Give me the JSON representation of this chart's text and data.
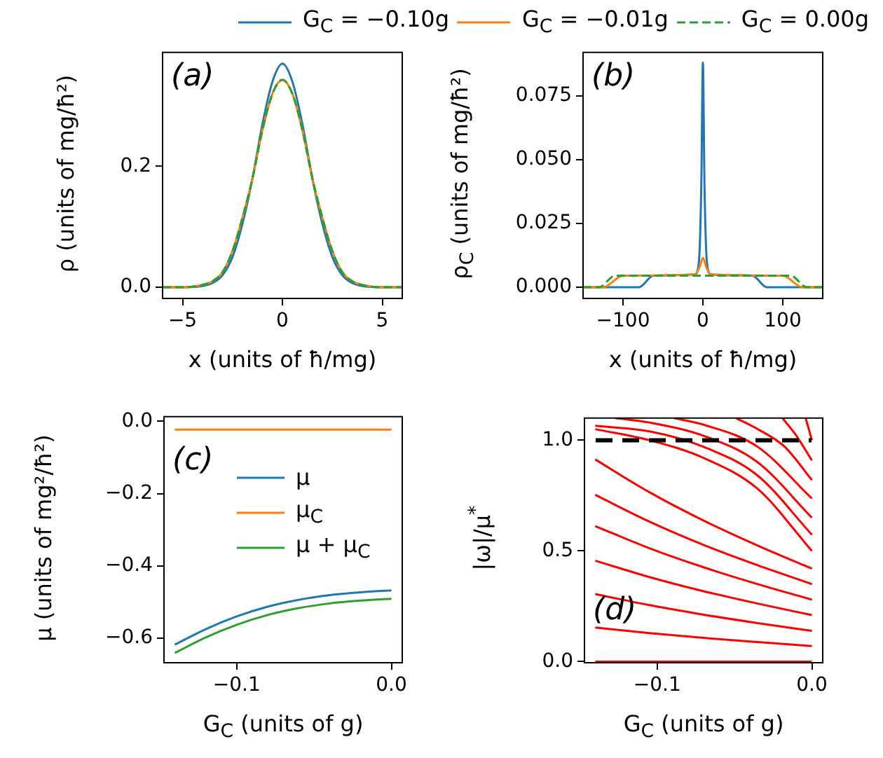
{
  "chart_data": [
    {
      "type": "line",
      "xlabel": "x (units of ħ/mg)",
      "ylabel": "ρ (units of mg/ħ²)",
      "annotations": [
        "(a)"
      ],
      "legend": "top",
      "x": [
        -6,
        -5,
        -4,
        -3.5,
        -3,
        -2.5,
        -2,
        -1.5,
        -1,
        -0.5,
        0,
        0.5,
        1,
        1.5,
        2,
        2.5,
        3,
        3.5,
        4,
        5,
        6
      ],
      "series": [
        {
          "name": "G$_{C}$ = −0.10g",
          "color": "#1f77b4",
          "values": [
            0,
            0,
            0.002,
            0.007,
            0.02,
            0.05,
            0.105,
            0.18,
            0.27,
            0.34,
            0.37,
            0.34,
            0.27,
            0.18,
            0.105,
            0.05,
            0.02,
            0.007,
            0.002,
            0,
            0
          ]
        },
        {
          "name": "G$_{C}$ = −0.01g",
          "color": "#ff7f0e",
          "values": [
            0,
            0,
            0.004,
            0.01,
            0.025,
            0.06,
            0.115,
            0.18,
            0.26,
            0.32,
            0.343,
            0.32,
            0.26,
            0.18,
            0.115,
            0.06,
            0.025,
            0.01,
            0.004,
            0,
            0
          ]
        },
        {
          "name": "G$_{C}$ = 0.00g",
          "color": "#2ca02c",
          "line_style": "dashed",
          "values": [
            0,
            0,
            0.004,
            0.01,
            0.025,
            0.06,
            0.115,
            0.18,
            0.26,
            0.32,
            0.343,
            0.32,
            0.26,
            0.18,
            0.115,
            0.06,
            0.025,
            0.01,
            0.004,
            0,
            0
          ]
        }
      ],
      "xlim": [
        -6,
        6
      ],
      "xticks": [
        {
          "value": -5,
          "label": "−5"
        },
        0,
        5
      ],
      "ylim": [
        -0.0185,
        0.3885
      ],
      "yticks": [
        {
          "value": 0,
          "label": "0.0"
        },
        0.2
      ]
    },
    {
      "type": "line",
      "xlabel": "x (units of ħ/mg)",
      "ylabel": "ρ$_{C}$ (units of mg/ħ²)",
      "annotations": [
        "(b)"
      ],
      "series": [
        {
          "color": "#1f77b4",
          "x": [
            -150,
            -80,
            -62,
            -10,
            -5,
            -2,
            0,
            2,
            5,
            10,
            62,
            80,
            150
          ],
          "values": [
            0,
            0,
            0.0045,
            0.005,
            0.01,
            0.04,
            0.088,
            0.04,
            0.01,
            0.005,
            0.0045,
            0,
            0
          ]
        },
        {
          "color": "#ff7f0e",
          "x": [
            -150,
            -125,
            -100,
            -10,
            -4,
            0,
            4,
            10,
            100,
            125,
            150
          ],
          "values": [
            0,
            0,
            0.0045,
            0.005,
            0.008,
            0.0115,
            0.008,
            0.005,
            0.0045,
            0,
            0
          ]
        },
        {
          "color": "#2ca02c",
          "line_style": "dashed",
          "x": [
            -150,
            -130,
            -110,
            110,
            130,
            150
          ],
          "values": [
            0,
            0,
            0.0045,
            0.0045,
            0,
            0
          ]
        }
      ],
      "xlim": [
        -150,
        150
      ],
      "xticks": [
        {
          "value": -100,
          "label": "−100"
        },
        0,
        100
      ],
      "ylim": [
        -0.0044,
        0.092
      ],
      "yticks": [
        {
          "value": 0,
          "label": "0.000"
        },
        {
          "value": 0.025,
          "label": "0.025"
        },
        {
          "value": 0.05,
          "label": "0.050"
        },
        {
          "value": 0.075,
          "label": "0.075"
        }
      ]
    },
    {
      "type": "line",
      "xlabel": "G$_{C}$ (units of g)",
      "ylabel": "μ (units of mg²/ħ²)",
      "annotations": [
        "(c)"
      ],
      "legend": "top right",
      "x": [
        -0.14,
        -0.12,
        -0.1,
        -0.08,
        -0.06,
        -0.04,
        -0.02,
        0
      ],
      "series": [
        {
          "name": "μ",
          "color": "#1f77b4",
          "values": [
            -0.618,
            -0.575,
            -0.54,
            -0.513,
            -0.494,
            -0.481,
            -0.473,
            -0.468
          ]
        },
        {
          "name": "μ$_{C}$",
          "color": "#ff7f0e",
          "values": [
            -0.023,
            -0.023,
            -0.023,
            -0.023,
            -0.023,
            -0.023,
            -0.023,
            -0.023
          ]
        },
        {
          "name": "μ + μ$_{C}$",
          "color": "#2ca02c",
          "values": [
            -0.641,
            -0.598,
            -0.563,
            -0.536,
            -0.517,
            -0.504,
            -0.496,
            -0.491
          ]
        }
      ],
      "xlim": [
        -0.147,
        0.007
      ],
      "xticks": [
        {
          "value": -0.1,
          "label": "−0.1"
        },
        {
          "value": 0,
          "label": "0.0"
        }
      ],
      "ylim": [
        -0.668,
        0.0127
      ],
      "yticks": [
        {
          "value": -0.6,
          "label": "−0.6"
        },
        {
          "value": -0.4,
          "label": "−0.4"
        },
        {
          "value": -0.2,
          "label": "−0.2"
        },
        {
          "value": 0,
          "label": "0.0"
        }
      ]
    },
    {
      "type": "line",
      "xlabel": "G$_{C}$ (units of g)",
      "ylabel": "|ω|/μ$^{*}$",
      "annotations": [
        "(d)"
      ],
      "series": [
        {
          "color": "#ff0000",
          "x": [
            -0.14,
            0
          ],
          "values": [
            0,
            0
          ]
        },
        {
          "color": "#ff0000",
          "x": [
            -0.14,
            -0.105,
            -0.07,
            -0.035,
            0
          ],
          "values": [
            0.154,
            0.129,
            0.107,
            0.088,
            0.07
          ]
        },
        {
          "color": "#ff0000",
          "x": [
            -0.14,
            -0.105,
            -0.07,
            -0.035,
            0
          ],
          "values": [
            0.305,
            0.255,
            0.212,
            0.174,
            0.139
          ]
        },
        {
          "color": "#ff0000",
          "x": [
            -0.14,
            -0.105,
            -0.07,
            -0.035,
            0
          ],
          "values": [
            0.456,
            0.382,
            0.318,
            0.262,
            0.21
          ]
        },
        {
          "color": "#ff0000",
          "x": [
            -0.14,
            -0.105,
            -0.07,
            -0.035,
            0
          ],
          "values": [
            0.612,
            0.512,
            0.426,
            0.35,
            0.28
          ]
        },
        {
          "color": "#ff0000",
          "x": [
            -0.14,
            -0.105,
            -0.07,
            -0.035,
            0
          ],
          "values": [
            0.753,
            0.632,
            0.527,
            0.435,
            0.35
          ]
        },
        {
          "color": "#ff0000",
          "x": [
            -0.14,
            -0.105,
            -0.07,
            -0.035,
            0
          ],
          "values": [
            0.913,
            0.765,
            0.637,
            0.524,
            0.42
          ]
        },
        {
          "color": "#ff0000",
          "x": [
            -0.14,
            -0.105,
            -0.07,
            -0.035,
            0
          ],
          "values": [
            1.05,
            1.0,
            0.92,
            0.78,
            0.5
          ]
        },
        {
          "color": "#ff0000",
          "x": [
            -0.14,
            -0.105,
            -0.07,
            -0.035,
            0
          ],
          "values": [
            1.065,
            1.04,
            0.97,
            0.84,
            0.573
          ]
        },
        {
          "color": "#ff0000",
          "x": [
            -0.127,
            -0.105,
            -0.07,
            -0.035,
            0
          ],
          "values": [
            1.1,
            1.08,
            1.02,
            0.9,
            0.65
          ]
        },
        {
          "color": "#ff0000",
          "x": [
            -0.089,
            -0.07,
            -0.035,
            0
          ],
          "values": [
            1.1,
            1.07,
            0.97,
            0.737
          ]
        },
        {
          "color": "#ff0000",
          "x": [
            -0.049,
            -0.035,
            -0.0175,
            0
          ],
          "values": [
            1.1,
            1.05,
            0.97,
            0.82
          ]
        },
        {
          "color": "#ff0000",
          "x": [
            -0.019,
            -0.01,
            0
          ],
          "values": [
            1.1,
            1.02,
            0.909
          ]
        },
        {
          "color": "#ff0000",
          "x": [
            -0.004,
            0
          ],
          "values": [
            1.1,
            1.0
          ]
        }
      ],
      "ref_lines": [
        {
          "axis": "y",
          "value": 1.0,
          "color": "#000000",
          "line_style": "dashed"
        }
      ],
      "xlim": [
        -0.147,
        0.007
      ],
      "xticks": [
        {
          "value": -0.1,
          "label": "−0.1"
        },
        {
          "value": 0,
          "label": "0.0"
        }
      ],
      "ylim": [
        -0.005,
        1.1
      ],
      "yticks": [
        {
          "value": 0,
          "label": "0.0"
        },
        {
          "value": 0.5,
          "label": "0.5"
        },
        {
          "value": 1,
          "label": "1.0"
        }
      ]
    }
  ]
}
